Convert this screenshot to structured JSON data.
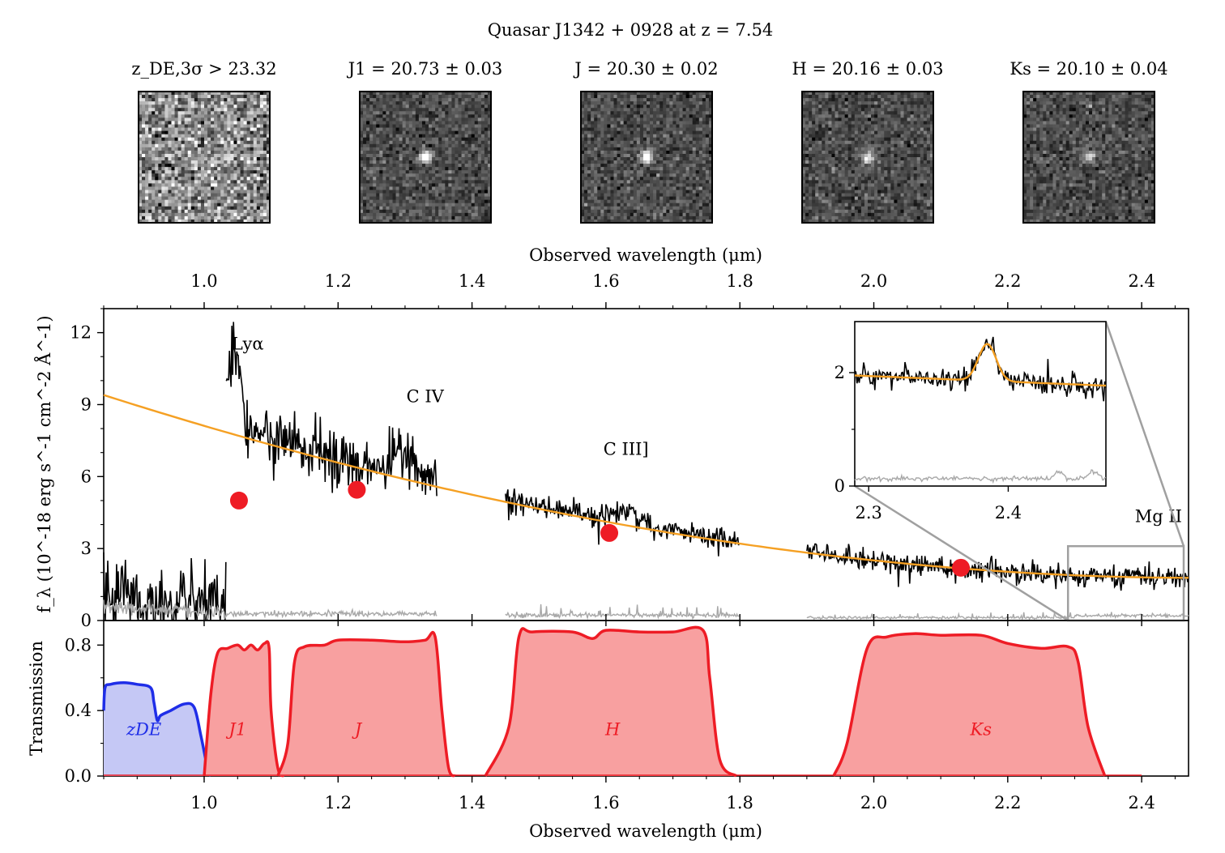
{
  "figure": {
    "title": "Quasar J1342 + 0928 at z = 7.54"
  },
  "stamps": [
    {
      "label": "z_DE,3σ > 23.32",
      "kind": "noise"
    },
    {
      "label": "J1 = 20.73 ± 0.03",
      "kind": "source",
      "source_strength": 0.9
    },
    {
      "label": "J = 20.30 ± 0.02",
      "kind": "source",
      "source_strength": 1.0
    },
    {
      "label": "H = 20.16 ± 0.03",
      "kind": "source",
      "source_strength": 0.85
    },
    {
      "label": "Ks = 20.10 ± 0.04",
      "kind": "source",
      "source_strength": 0.6
    }
  ],
  "chart_data": [
    {
      "type": "line",
      "name": "spectrum",
      "top_axis_label": "Observed wavelength (μm)",
      "ylabel": "f_λ (10^-18 erg s^-1 cm^-2 Å^-1)",
      "xlim": [
        0.85,
        2.47
      ],
      "ylim": [
        0,
        13
      ],
      "xticks": [
        1.0,
        1.2,
        1.4,
        1.6,
        1.8,
        2.0,
        2.2,
        2.4
      ],
      "yticks": [
        0,
        3,
        6,
        9,
        12
      ],
      "annotations": [
        {
          "text": "Lyα",
          "x": 1.065,
          "y": 11.3
        },
        {
          "text": "C IV",
          "x": 1.33,
          "y": 9.1
        },
        {
          "text": "C III]",
          "x": 1.63,
          "y": 6.9
        },
        {
          "text": "Mg II",
          "x": 2.425,
          "y": 4.1
        }
      ],
      "continuum_model": {
        "color": "#f5a023",
        "x_start": 0.85,
        "y_start": 9.4,
        "x_end": 2.47,
        "y_end": 1.78
      },
      "spectrum_segments": [
        {
          "xmin": 0.85,
          "xmax": 1.033,
          "level": "lya_forest"
        },
        {
          "xmin": 1.033,
          "xmax": 1.348,
          "level": "blue"
        },
        {
          "xmin": 1.45,
          "xmax": 1.8,
          "level": "mid"
        },
        {
          "xmin": 1.9,
          "xmax": 2.47,
          "level": "red"
        }
      ],
      "photometry_points": {
        "color": "#ee1c25",
        "x": [
          1.052,
          1.228,
          1.605,
          2.13
        ],
        "y": [
          5.0,
          5.45,
          3.65,
          2.2
        ]
      },
      "zoom_box": {
        "x": [
          2.29,
          2.47
        ],
        "y": [
          0,
          3.1
        ]
      },
      "inset": {
        "xlim": [
          2.29,
          2.47
        ],
        "ylim": [
          0,
          2.9
        ],
        "xticks": [
          2.3,
          2.4
        ],
        "yticks": [
          0,
          2
        ],
        "line_center": 2.385
      }
    },
    {
      "type": "area",
      "name": "filters",
      "xlabel": "Observed wavelength (μm)",
      "ylabel": "Transmission",
      "xlim": [
        0.85,
        2.47
      ],
      "ylim": [
        0,
        0.95
      ],
      "xticks": [
        1.0,
        1.2,
        1.4,
        1.6,
        1.8,
        2.0,
        2.2,
        2.4
      ],
      "yticks": [
        0.0,
        0.4,
        0.8
      ],
      "series": [
        {
          "name": "zDE",
          "color": "#1f2ee8",
          "fill": "#c5c8f5",
          "label_x": 0.91,
          "label_y": 0.25,
          "x": [
            0.85,
            0.852,
            0.86,
            0.88,
            0.9,
            0.92,
            0.925,
            0.93,
            0.935,
            0.95,
            0.97,
            0.985,
            0.995,
            1.005,
            1.01
          ],
          "y": [
            0.4,
            0.54,
            0.56,
            0.57,
            0.56,
            0.54,
            0.45,
            0.34,
            0.37,
            0.4,
            0.44,
            0.42,
            0.25,
            0.05,
            0.0
          ]
        },
        {
          "name": "J1",
          "color": "#ee1c25",
          "fill": "#f8a0a0",
          "label_x": 1.05,
          "label_y": 0.25,
          "x": [
            1.0,
            1.01,
            1.02,
            1.035,
            1.05,
            1.06,
            1.07,
            1.08,
            1.09,
            1.097,
            1.1,
            1.11,
            1.12
          ],
          "y": [
            0.0,
            0.5,
            0.75,
            0.78,
            0.8,
            0.77,
            0.8,
            0.77,
            0.81,
            0.78,
            0.4,
            0.05,
            0.0
          ]
        },
        {
          "name": "J",
          "color": "#ee1c25",
          "fill": "#f8a0a0",
          "label_x": 1.23,
          "label_y": 0.25,
          "x": [
            1.11,
            1.125,
            1.135,
            1.15,
            1.18,
            1.2,
            1.25,
            1.3,
            1.33,
            1.345,
            1.355,
            1.365,
            1.375
          ],
          "y": [
            0.0,
            0.2,
            0.7,
            0.79,
            0.8,
            0.83,
            0.83,
            0.82,
            0.83,
            0.85,
            0.4,
            0.05,
            0.0
          ]
        },
        {
          "name": "H",
          "color": "#ee1c25",
          "fill": "#f8a0a0",
          "label_x": 1.61,
          "label_y": 0.25,
          "x": [
            1.42,
            1.455,
            1.47,
            1.49,
            1.55,
            1.58,
            1.6,
            1.65,
            1.7,
            1.745,
            1.755,
            1.77,
            1.795
          ],
          "y": [
            0.0,
            0.3,
            0.85,
            0.88,
            0.88,
            0.84,
            0.89,
            0.88,
            0.88,
            0.89,
            0.6,
            0.1,
            0.0
          ]
        },
        {
          "name": "Ks",
          "color": "#ee1c25",
          "fill": "#f8a0a0",
          "label_x": 2.16,
          "label_y": 0.25,
          "x": [
            1.94,
            1.96,
            1.99,
            2.02,
            2.06,
            2.1,
            2.16,
            2.2,
            2.25,
            2.29,
            2.305,
            2.32,
            2.345
          ],
          "y": [
            0.0,
            0.2,
            0.78,
            0.85,
            0.87,
            0.86,
            0.86,
            0.81,
            0.78,
            0.79,
            0.7,
            0.3,
            0.0
          ]
        }
      ]
    }
  ]
}
